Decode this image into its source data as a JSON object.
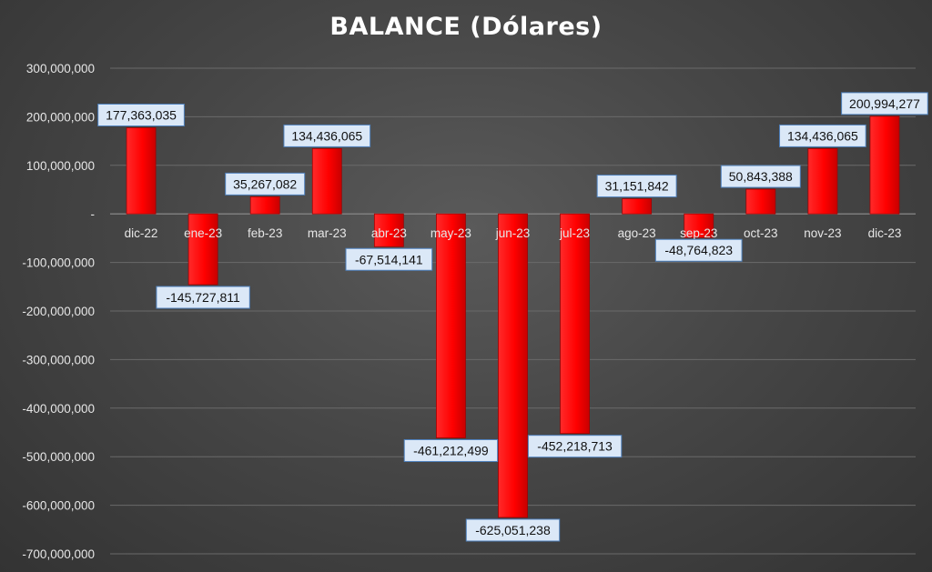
{
  "chart_data": {
    "type": "bar",
    "title": "BALANCE (Dólares)",
    "xlabel": "",
    "ylabel": "",
    "ylim": [
      -700000000,
      300000000
    ],
    "y_tick_step": 100000000,
    "y_ticks": [
      "300,000,000",
      "200,000,000",
      "100,000,000",
      "-",
      "-100,000,000",
      "-200,000,000",
      "-300,000,000",
      "-400,000,000",
      "-500,000,000",
      "-600,000,000",
      "-700,000,000"
    ],
    "categories": [
      "dic-22",
      "ene-23",
      "feb-23",
      "mar-23",
      "abr-23",
      "may-23",
      "jun-23",
      "jul-23",
      "ago-23",
      "sep-23",
      "oct-23",
      "nov-23",
      "dic-23"
    ],
    "values": [
      177363035,
      -145727811,
      35267082,
      134436065,
      -67514141,
      -461212499,
      -625051238,
      -452218713,
      31151842,
      -48764823,
      50843388,
      134436065,
      200994277
    ],
    "data_labels": [
      "177,363,035",
      "-145,727,811",
      "35,267,082",
      "134,436,065",
      "-67,514,141",
      "-461,212,499",
      "-625,051,238",
      "-452,218,713",
      "31,151,842",
      "-48,764,823",
      "50,843,388",
      "134,436,065",
      "200,994,277"
    ],
    "grid": true,
    "legend": "none",
    "colors": {
      "bar": "#ff0000",
      "bar_dark": "#a00000",
      "label_fill": "#dbe8f7",
      "label_border": "#4f81bd",
      "grid": "#6a6a6a",
      "text": "#e6e6e6"
    }
  }
}
